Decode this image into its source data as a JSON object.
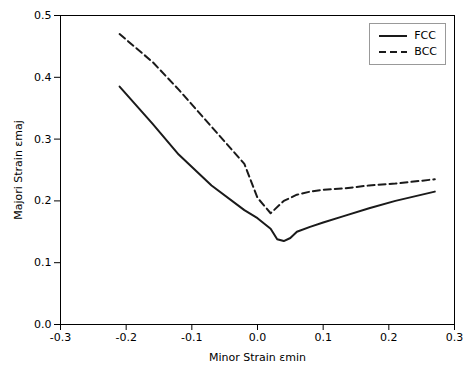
{
  "chart_data": {
    "type": "line",
    "xlabel": "Minor Strain εmin",
    "ylabel": "Majori Strain εmaj",
    "series": [
      {
        "name": "FCC",
        "color": "#1a1a1a",
        "line_style": "solid",
        "x": [
          -0.21,
          -0.16,
          -0.12,
          -0.07,
          -0.02,
          0.0,
          0.02,
          0.03,
          0.04,
          0.05,
          0.06,
          0.08,
          0.1,
          0.13,
          0.17,
          0.21,
          0.27
        ],
        "values": [
          0.385,
          0.325,
          0.275,
          0.225,
          0.185,
          0.172,
          0.155,
          0.138,
          0.135,
          0.14,
          0.15,
          0.158,
          0.165,
          0.175,
          0.188,
          0.2,
          0.215
        ]
      },
      {
        "name": "BCC",
        "color": "#1a1a1a",
        "line_style": "dashed",
        "x": [
          -0.21,
          -0.16,
          -0.12,
          -0.07,
          -0.02,
          0.0,
          0.02,
          0.04,
          0.06,
          0.08,
          0.1,
          0.13,
          0.17,
          0.21,
          0.27
        ],
        "values": [
          0.47,
          0.425,
          0.38,
          0.32,
          0.26,
          0.205,
          0.18,
          0.2,
          0.21,
          0.215,
          0.218,
          0.22,
          0.225,
          0.228,
          0.235
        ]
      }
    ],
    "xlim": [
      -0.3,
      0.3
    ],
    "ylim": [
      0.0,
      0.5
    ],
    "xticks": [
      -0.3,
      -0.2,
      -0.1,
      {
        "value": 0.0,
        "label": "0.0"
      },
      0.1,
      0.2,
      0.3
    ],
    "yticks": [
      {
        "value": 0.0,
        "label": "0.0"
      },
      0.1,
      0.2,
      0.3,
      0.4,
      0.5
    ],
    "grid": false,
    "legend": "upper right"
  }
}
